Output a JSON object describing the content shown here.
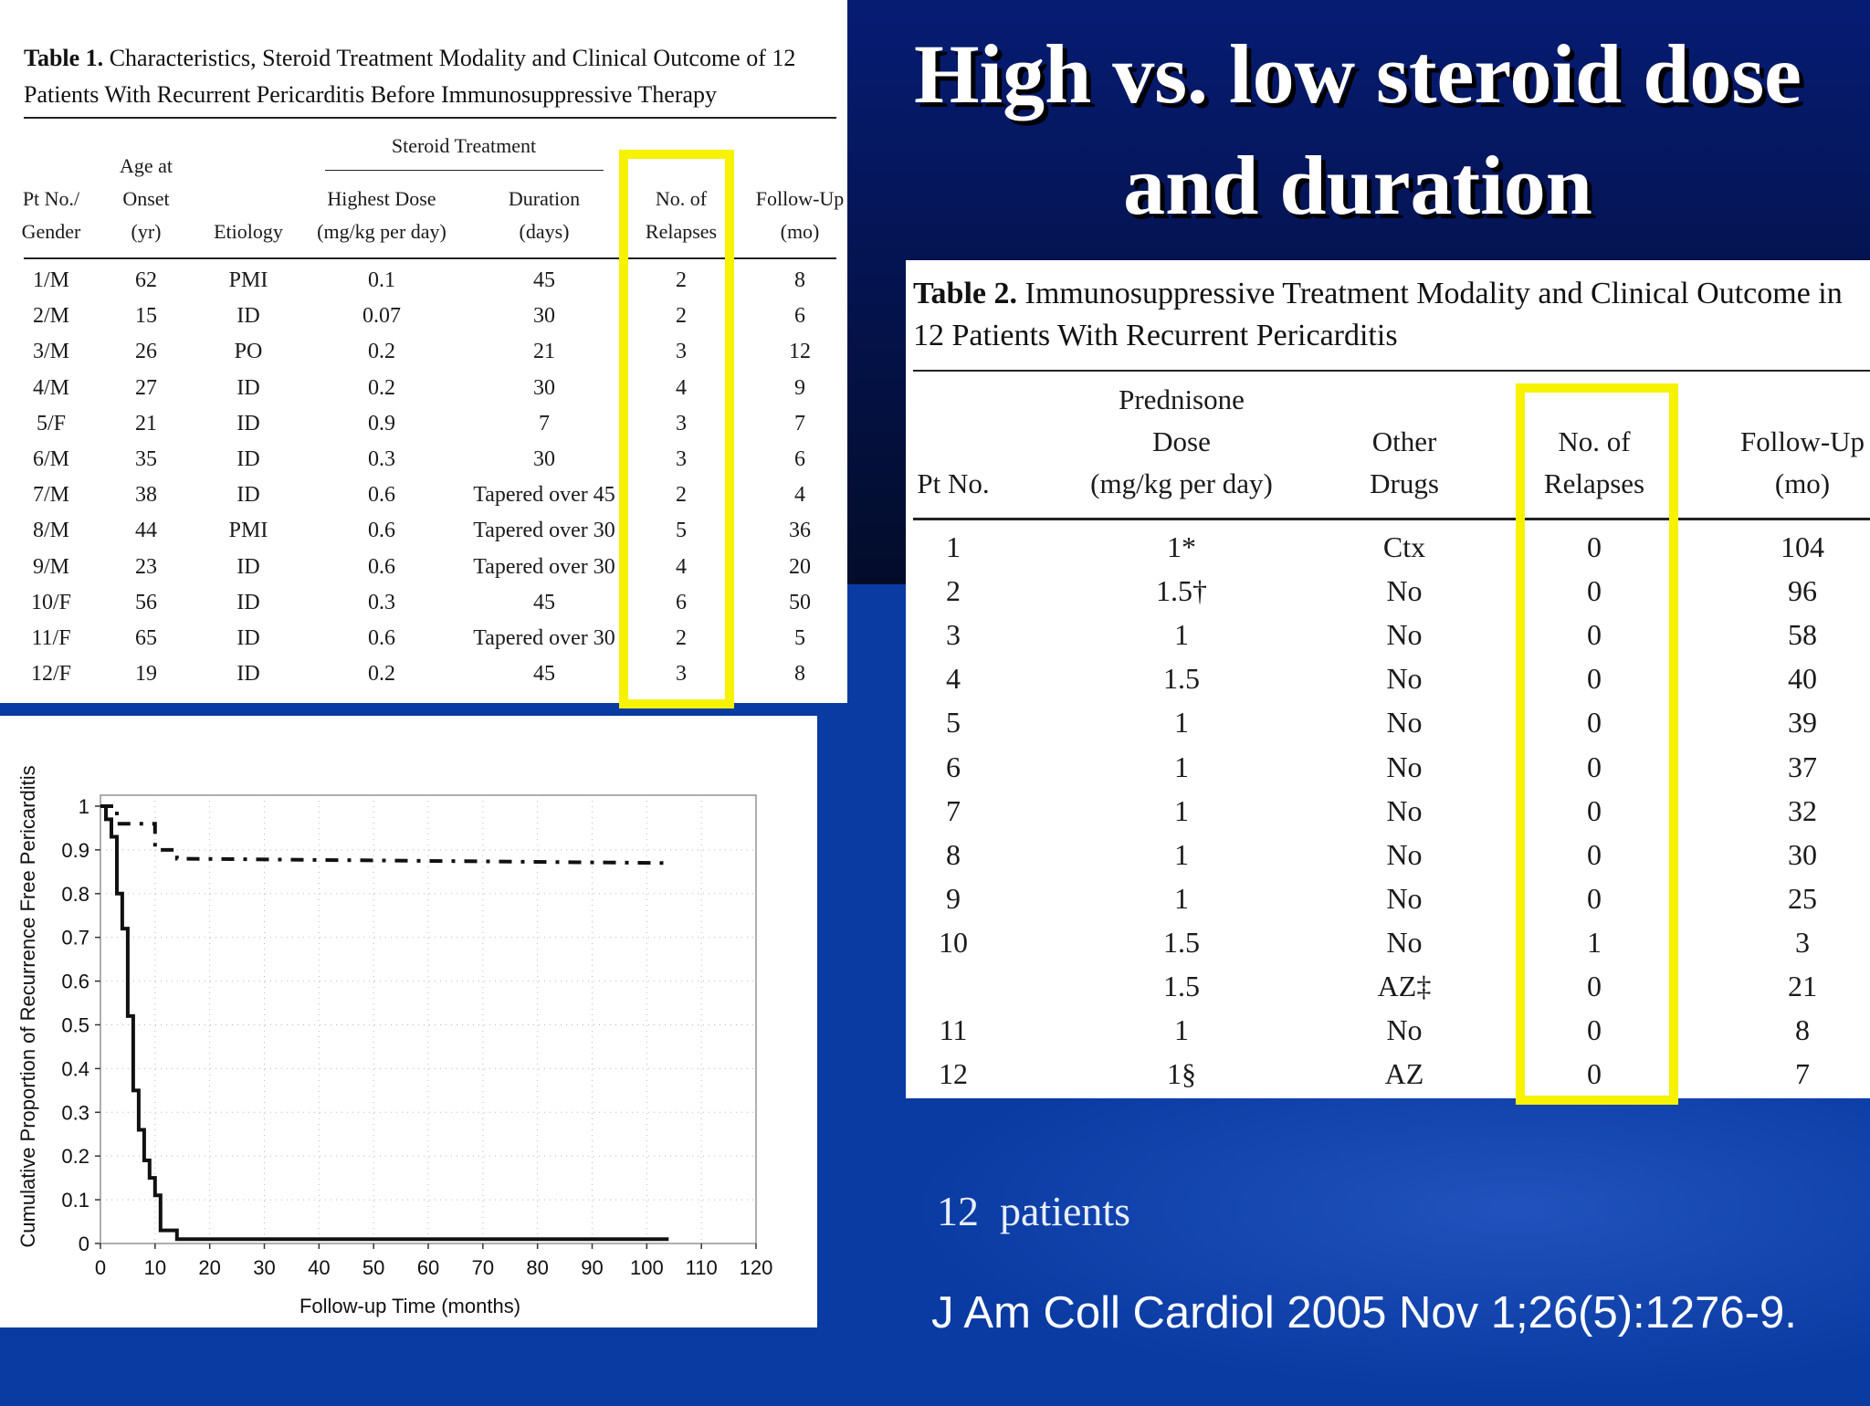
{
  "slide": {
    "title_line1": "High vs. low steroid dose",
    "title_line2": "and duration",
    "note": "12  patients",
    "citation": "J Am Coll Cardiol 2005 Nov 1;26(5):1276-9."
  },
  "table1": {
    "caption_label": "Table 1.",
    "caption_text": "Characteristics, Steroid Treatment Modality and Clinical Outcome of 12 Patients With Recurrent Pericarditis Before Immunosuppressive Therapy",
    "group_header": "Steroid Treatment",
    "headers": {
      "pt": [
        "Pt No./",
        "Gender"
      ],
      "age": [
        "Age at",
        "Onset",
        "(yr)"
      ],
      "etiology": [
        "Etiology"
      ],
      "dose": [
        "Highest Dose",
        "(mg/kg per day)"
      ],
      "duration": [
        "Duration",
        "(days)"
      ],
      "relapses": [
        "No. of",
        "Relapses"
      ],
      "followup": [
        "Follow-Up",
        "(mo)"
      ]
    },
    "rows": [
      [
        "1/M",
        "62",
        "PMI",
        "0.1",
        "45",
        "2",
        "8"
      ],
      [
        "2/M",
        "15",
        "ID",
        "0.07",
        "30",
        "2",
        "6"
      ],
      [
        "3/M",
        "26",
        "PO",
        "0.2",
        "21",
        "3",
        "12"
      ],
      [
        "4/M",
        "27",
        "ID",
        "0.2",
        "30",
        "4",
        "9"
      ],
      [
        "5/F",
        "21",
        "ID",
        "0.9",
        "7",
        "3",
        "7"
      ],
      [
        "6/M",
        "35",
        "ID",
        "0.3",
        "30",
        "3",
        "6"
      ],
      [
        "7/M",
        "38",
        "ID",
        "0.6",
        "Tapered over 45",
        "2",
        "4"
      ],
      [
        "8/M",
        "44",
        "PMI",
        "0.6",
        "Tapered over 30",
        "5",
        "36"
      ],
      [
        "9/M",
        "23",
        "ID",
        "0.6",
        "Tapered over 30",
        "4",
        "20"
      ],
      [
        "10/F",
        "56",
        "ID",
        "0.3",
        "45",
        "6",
        "50"
      ],
      [
        "11/F",
        "65",
        "ID",
        "0.6",
        "Tapered over 30",
        "2",
        "5"
      ],
      [
        "12/F",
        "19",
        "ID",
        "0.2",
        "45",
        "3",
        "8"
      ]
    ]
  },
  "table2": {
    "caption_label": "Table 2.",
    "caption_text": "Immunosuppressive Treatment Modality and Clinical Outcome in 12 Patients With Recurrent Pericarditis",
    "headers": {
      "pt": [
        "Pt No."
      ],
      "dose": [
        "Prednisone",
        "Dose",
        "(mg/kg per day)"
      ],
      "drugs": [
        "Other",
        "Drugs"
      ],
      "relapses": [
        "No. of",
        "Relapses"
      ],
      "followup": [
        "Follow-Up",
        "(mo)"
      ]
    },
    "rows": [
      [
        "1",
        "1*",
        "Ctx",
        "0",
        "104"
      ],
      [
        "2",
        "1.5†",
        "No",
        "0",
        "96"
      ],
      [
        "3",
        "1",
        "No",
        "0",
        "58"
      ],
      [
        "4",
        "1.5",
        "No",
        "0",
        "40"
      ],
      [
        "5",
        "1",
        "No",
        "0",
        "39"
      ],
      [
        "6",
        "1",
        "No",
        "0",
        "37"
      ],
      [
        "7",
        "1",
        "No",
        "0",
        "32"
      ],
      [
        "8",
        "1",
        "No",
        "0",
        "30"
      ],
      [
        "9",
        "1",
        "No",
        "0",
        "25"
      ],
      [
        "10",
        "1.5",
        "No",
        "1",
        "3"
      ],
      [
        "",
        "1.5",
        "AZ‡",
        "0",
        "21"
      ],
      [
        "11",
        "1",
        "No",
        "0",
        "8"
      ],
      [
        "12",
        "1§",
        "AZ",
        "0",
        "7"
      ]
    ]
  },
  "highlight_color": "#f6f200",
  "chart_data": {
    "type": "line",
    "title": "",
    "xlabel": "Follow-up Time (months)",
    "ylabel": "Cumulative Proportion of Recurrence Free Pericarditis",
    "xlim": [
      0,
      120
    ],
    "ylim": [
      0,
      1
    ],
    "xticks": [
      "0",
      "10",
      "20",
      "30",
      "40",
      "50",
      "60",
      "70",
      "80",
      "90",
      "100",
      "110",
      "120"
    ],
    "yticks": [
      "0",
      "0.1",
      "0.2",
      "0.3",
      "0.4",
      "0.5",
      "0.6",
      "0.7",
      "0.8",
      "0.9",
      "1"
    ],
    "grid": true,
    "series": [
      {
        "style": "solid",
        "x": [
          0,
          1,
          1,
          2,
          2,
          3,
          3,
          4,
          4,
          5,
          5,
          6,
          6,
          7,
          7,
          8,
          8,
          9,
          9,
          10,
          10,
          11,
          11,
          14,
          14,
          104
        ],
        "y": [
          1,
          1,
          0.97,
          0.97,
          0.93,
          0.93,
          0.8,
          0.8,
          0.72,
          0.72,
          0.52,
          0.52,
          0.35,
          0.35,
          0.26,
          0.26,
          0.19,
          0.19,
          0.15,
          0.15,
          0.11,
          0.11,
          0.03,
          0.03,
          0.01,
          0.01
        ]
      },
      {
        "style": "dashed",
        "x": [
          0,
          3,
          3,
          10,
          10,
          14,
          14,
          104
        ],
        "y": [
          1,
          1,
          0.96,
          0.96,
          0.9,
          0.9,
          0.88,
          0.87
        ]
      }
    ]
  }
}
